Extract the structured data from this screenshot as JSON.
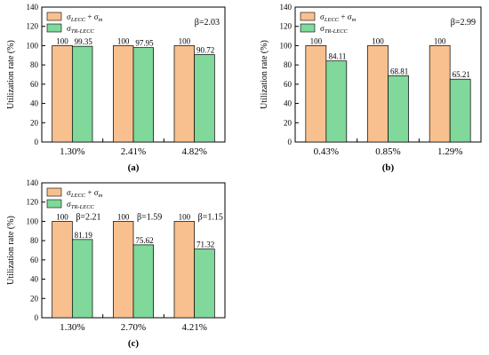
{
  "figure": {
    "title": "",
    "legend": {
      "position": "top-left",
      "items": [
        {
          "series": "s1",
          "base": "σ",
          "sub": "LECC",
          "rest": " + σ",
          "sub2": "m"
        },
        {
          "series": "s2",
          "base": "σ",
          "sub": "TR-LECC",
          "rest": "",
          "sub2": ""
        }
      ]
    }
  },
  "colors": {
    "s1": "#F9C08F",
    "s2": "#80D89B",
    "axis": "#000000"
  },
  "chart_data": [
    {
      "type": "bar",
      "panel_label": "(a)",
      "beta_text": "β=2.03",
      "beta_mode": "corner",
      "ylabel": "Utilization rate (%)",
      "ylim": [
        0,
        140
      ],
      "yticks": [
        0,
        20,
        40,
        60,
        80,
        100,
        120,
        140
      ],
      "categories": [
        "1.30%",
        "2.41%",
        "4.82%"
      ],
      "series": [
        {
          "key": "s1",
          "values": [
            100,
            100,
            100
          ],
          "labels": [
            "100",
            "100",
            "100"
          ]
        },
        {
          "key": "s2",
          "values": [
            99.35,
            97.95,
            90.72
          ],
          "labels": [
            "99.35",
            "97.95",
            "90.72"
          ]
        }
      ]
    },
    {
      "type": "bar",
      "panel_label": "(b)",
      "beta_text": "β=2.99",
      "beta_mode": "corner",
      "ylabel": "Utilization rate (%)",
      "ylim": [
        0,
        140
      ],
      "yticks": [
        0,
        20,
        40,
        60,
        80,
        100,
        120,
        140
      ],
      "categories": [
        "0.43%",
        "0.85%",
        "1.29%"
      ],
      "series": [
        {
          "key": "s1",
          "values": [
            100,
            100,
            100
          ],
          "labels": [
            "100",
            "100",
            "100"
          ]
        },
        {
          "key": "s2",
          "values": [
            84.11,
            68.81,
            65.21
          ],
          "labels": [
            "84.11",
            "68.81",
            "65.21"
          ]
        }
      ]
    },
    {
      "type": "bar",
      "panel_label": "(c)",
      "beta_mode": "per-group",
      "beta_per_group": [
        "β=2.21",
        "β=1.59",
        "β=1.15"
      ],
      "ylabel": "Utilization rate (%)",
      "ylim": [
        0,
        140
      ],
      "yticks": [
        0,
        20,
        40,
        60,
        80,
        100,
        120,
        140
      ],
      "categories": [
        "1.30%",
        "2.70%",
        "4.21%"
      ],
      "series": [
        {
          "key": "s1",
          "values": [
            100,
            100,
            100
          ],
          "labels": [
            "100",
            "100",
            "100"
          ]
        },
        {
          "key": "s2",
          "values": [
            81.19,
            75.62,
            71.32
          ],
          "labels": [
            "81.19",
            "75.62",
            "71.32"
          ]
        }
      ]
    }
  ]
}
